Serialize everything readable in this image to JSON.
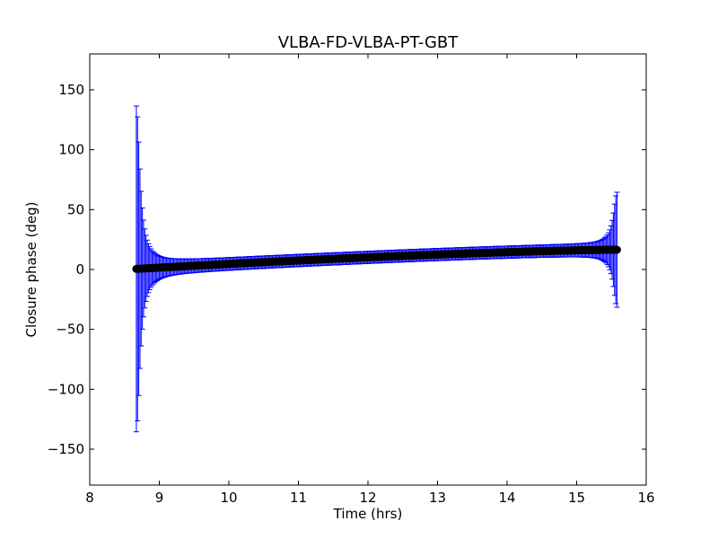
{
  "chart_data": {
    "type": "scatter",
    "title": "VLBA-FD-VLBA-PT-GBT",
    "xlabel": "Time (hrs)",
    "ylabel": "Closure phase (deg)",
    "xlim": [
      8,
      16
    ],
    "ylim": [
      -180,
      180
    ],
    "xticks": [
      8,
      9,
      10,
      11,
      12,
      13,
      14,
      15,
      16
    ],
    "xtick_labels": [
      "8",
      "9",
      "10",
      "11",
      "12",
      "13",
      "14",
      "15",
      "16"
    ],
    "yticks": [
      -150,
      -100,
      -50,
      0,
      50,
      100,
      150
    ],
    "ytick_labels": [
      "−150",
      "−100",
      "−50",
      "0",
      "50",
      "100",
      "150"
    ],
    "grid": false,
    "legend": "none",
    "series": [
      {
        "marker_color": "#000000",
        "errorbar_color": "#0000ff",
        "x_start": 8.67,
        "x_end": 15.58,
        "n_points": 400,
        "y_start": 0.5,
        "y_end": 16.5,
        "error_min": 5,
        "error_left_max": 136,
        "error_right_max": 48
      }
    ]
  }
}
